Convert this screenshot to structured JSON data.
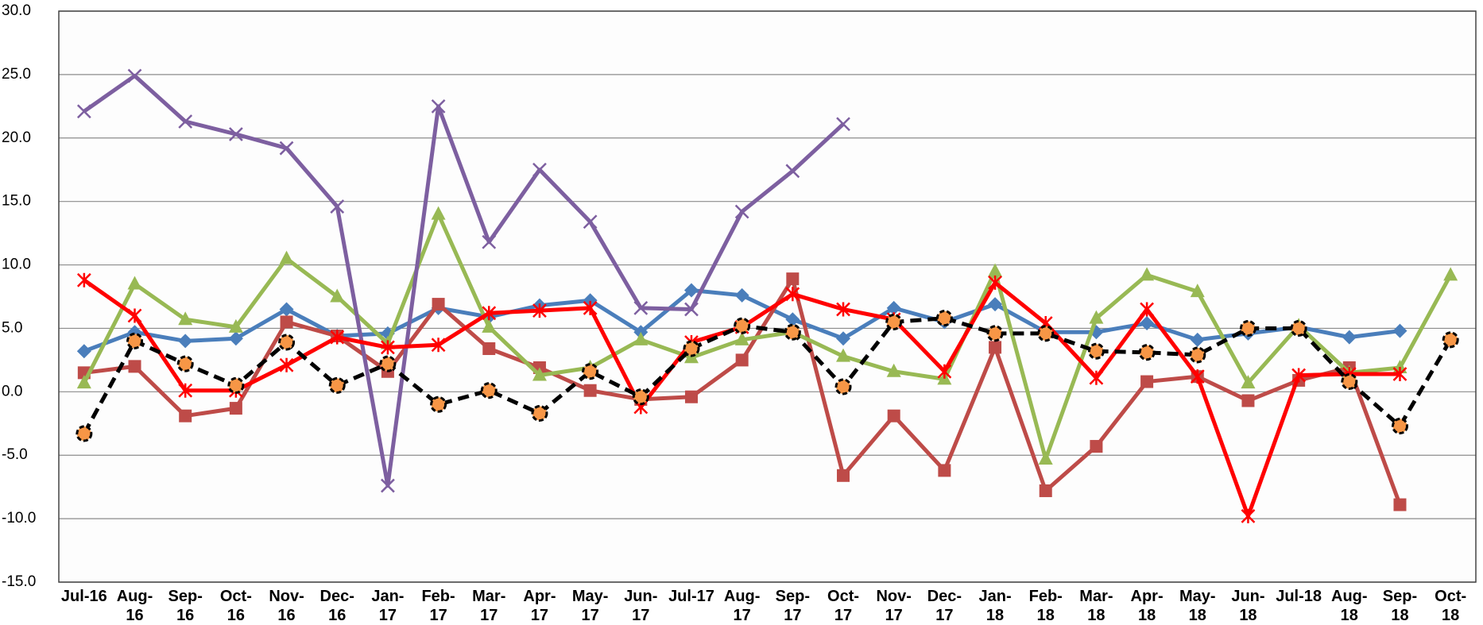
{
  "chart_data": {
    "type": "line",
    "categories": [
      "Jul-16",
      "Aug-16",
      "Sep-16",
      "Oct-16",
      "Nov-16",
      "Dec-16",
      "Jan-17",
      "Feb-17",
      "Mar-17",
      "Apr-17",
      "May-17",
      "Jun-17",
      "Jul-17",
      "Aug-17",
      "Sep-17",
      "Oct-17",
      "Nov-17",
      "Dec-17",
      "Jan-18",
      "Feb-18",
      "Mar-18",
      "Apr-18",
      "May-18",
      "Jun-18",
      "Jul-18",
      "Aug-18",
      "Sep-18",
      "Oct-18"
    ],
    "series": [
      {
        "color": "#4a7ebb",
        "marker": "diamond",
        "values": [
          3.2,
          4.7,
          4.0,
          4.2,
          6.5,
          4.4,
          4.6,
          6.6,
          5.9,
          6.8,
          7.2,
          4.7,
          8.0,
          7.6,
          5.7,
          4.2,
          6.6,
          5.5,
          6.9,
          4.7,
          4.7,
          5.4,
          4.1,
          4.6,
          5.1,
          4.3,
          4.8,
          null
        ]
      },
      {
        "color": "#be4b48",
        "marker": "square",
        "values": [
          1.5,
          2.0,
          -1.9,
          -1.3,
          5.5,
          4.4,
          1.6,
          6.9,
          3.4,
          1.9,
          0.1,
          -0.6,
          -0.4,
          2.5,
          8.9,
          -6.6,
          -1.9,
          -6.2,
          3.5,
          -7.8,
          -4.3,
          0.8,
          1.2,
          -0.7,
          0.9,
          1.9,
          -8.9,
          null
        ]
      },
      {
        "color": "#98b954",
        "marker": "triangle",
        "values": [
          0.7,
          8.5,
          5.7,
          5.1,
          10.5,
          7.5,
          3.8,
          14.0,
          5.1,
          1.3,
          1.9,
          4.1,
          2.7,
          4.1,
          4.7,
          2.8,
          1.6,
          1.0,
          9.5,
          -5.3,
          5.8,
          9.2,
          7.9,
          0.7,
          5.2,
          1.5,
          1.9,
          9.2
        ]
      },
      {
        "color": "#7d5fa0",
        "marker": "x",
        "values": [
          22.1,
          24.9,
          21.3,
          20.3,
          19.2,
          14.6,
          -7.4,
          22.5,
          11.8,
          17.5,
          13.4,
          6.6,
          6.5,
          14.2,
          17.4,
          21.1,
          null,
          null,
          null,
          null,
          null,
          null,
          null,
          null,
          null,
          null,
          null,
          null
        ]
      },
      {
        "color": "#ff0000",
        "marker": "star",
        "values": [
          8.8,
          6.0,
          0.1,
          0.1,
          2.1,
          4.3,
          3.5,
          3.7,
          6.2,
          6.4,
          6.6,
          -1.2,
          3.9,
          5.1,
          7.7,
          6.5,
          5.7,
          1.6,
          8.6,
          5.4,
          1.1,
          6.5,
          1.2,
          -9.8,
          1.3,
          1.4,
          1.4,
          null
        ]
      },
      {
        "color": "#000000",
        "marker": "circle",
        "marker_fill": "#f79646",
        "dash": true,
        "values": [
          -3.3,
          4.0,
          2.2,
          0.5,
          3.9,
          0.5,
          2.2,
          -1.0,
          0.1,
          -1.7,
          1.6,
          -0.4,
          3.4,
          5.2,
          4.7,
          0.4,
          5.5,
          5.8,
          4.6,
          4.6,
          3.2,
          3.1,
          2.9,
          5.0,
          5.0,
          0.8,
          -2.7,
          4.1
        ]
      }
    ],
    "ylim": [
      -15,
      30
    ],
    "yticks": [
      {
        "value": -15,
        "label": "-15.0"
      },
      {
        "value": -10,
        "label": "-10.0"
      },
      {
        "value": -5,
        "label": "-5.0"
      },
      {
        "value": 0,
        "label": "0.0"
      },
      {
        "value": 5,
        "label": "5.0"
      },
      {
        "value": 10,
        "label": "10.0"
      },
      {
        "value": 15,
        "label": "15.0"
      },
      {
        "value": 20,
        "label": "20.0"
      },
      {
        "value": 25,
        "label": "25.0"
      },
      {
        "value": 30,
        "label": "30.0"
      }
    ],
    "grid": true
  }
}
